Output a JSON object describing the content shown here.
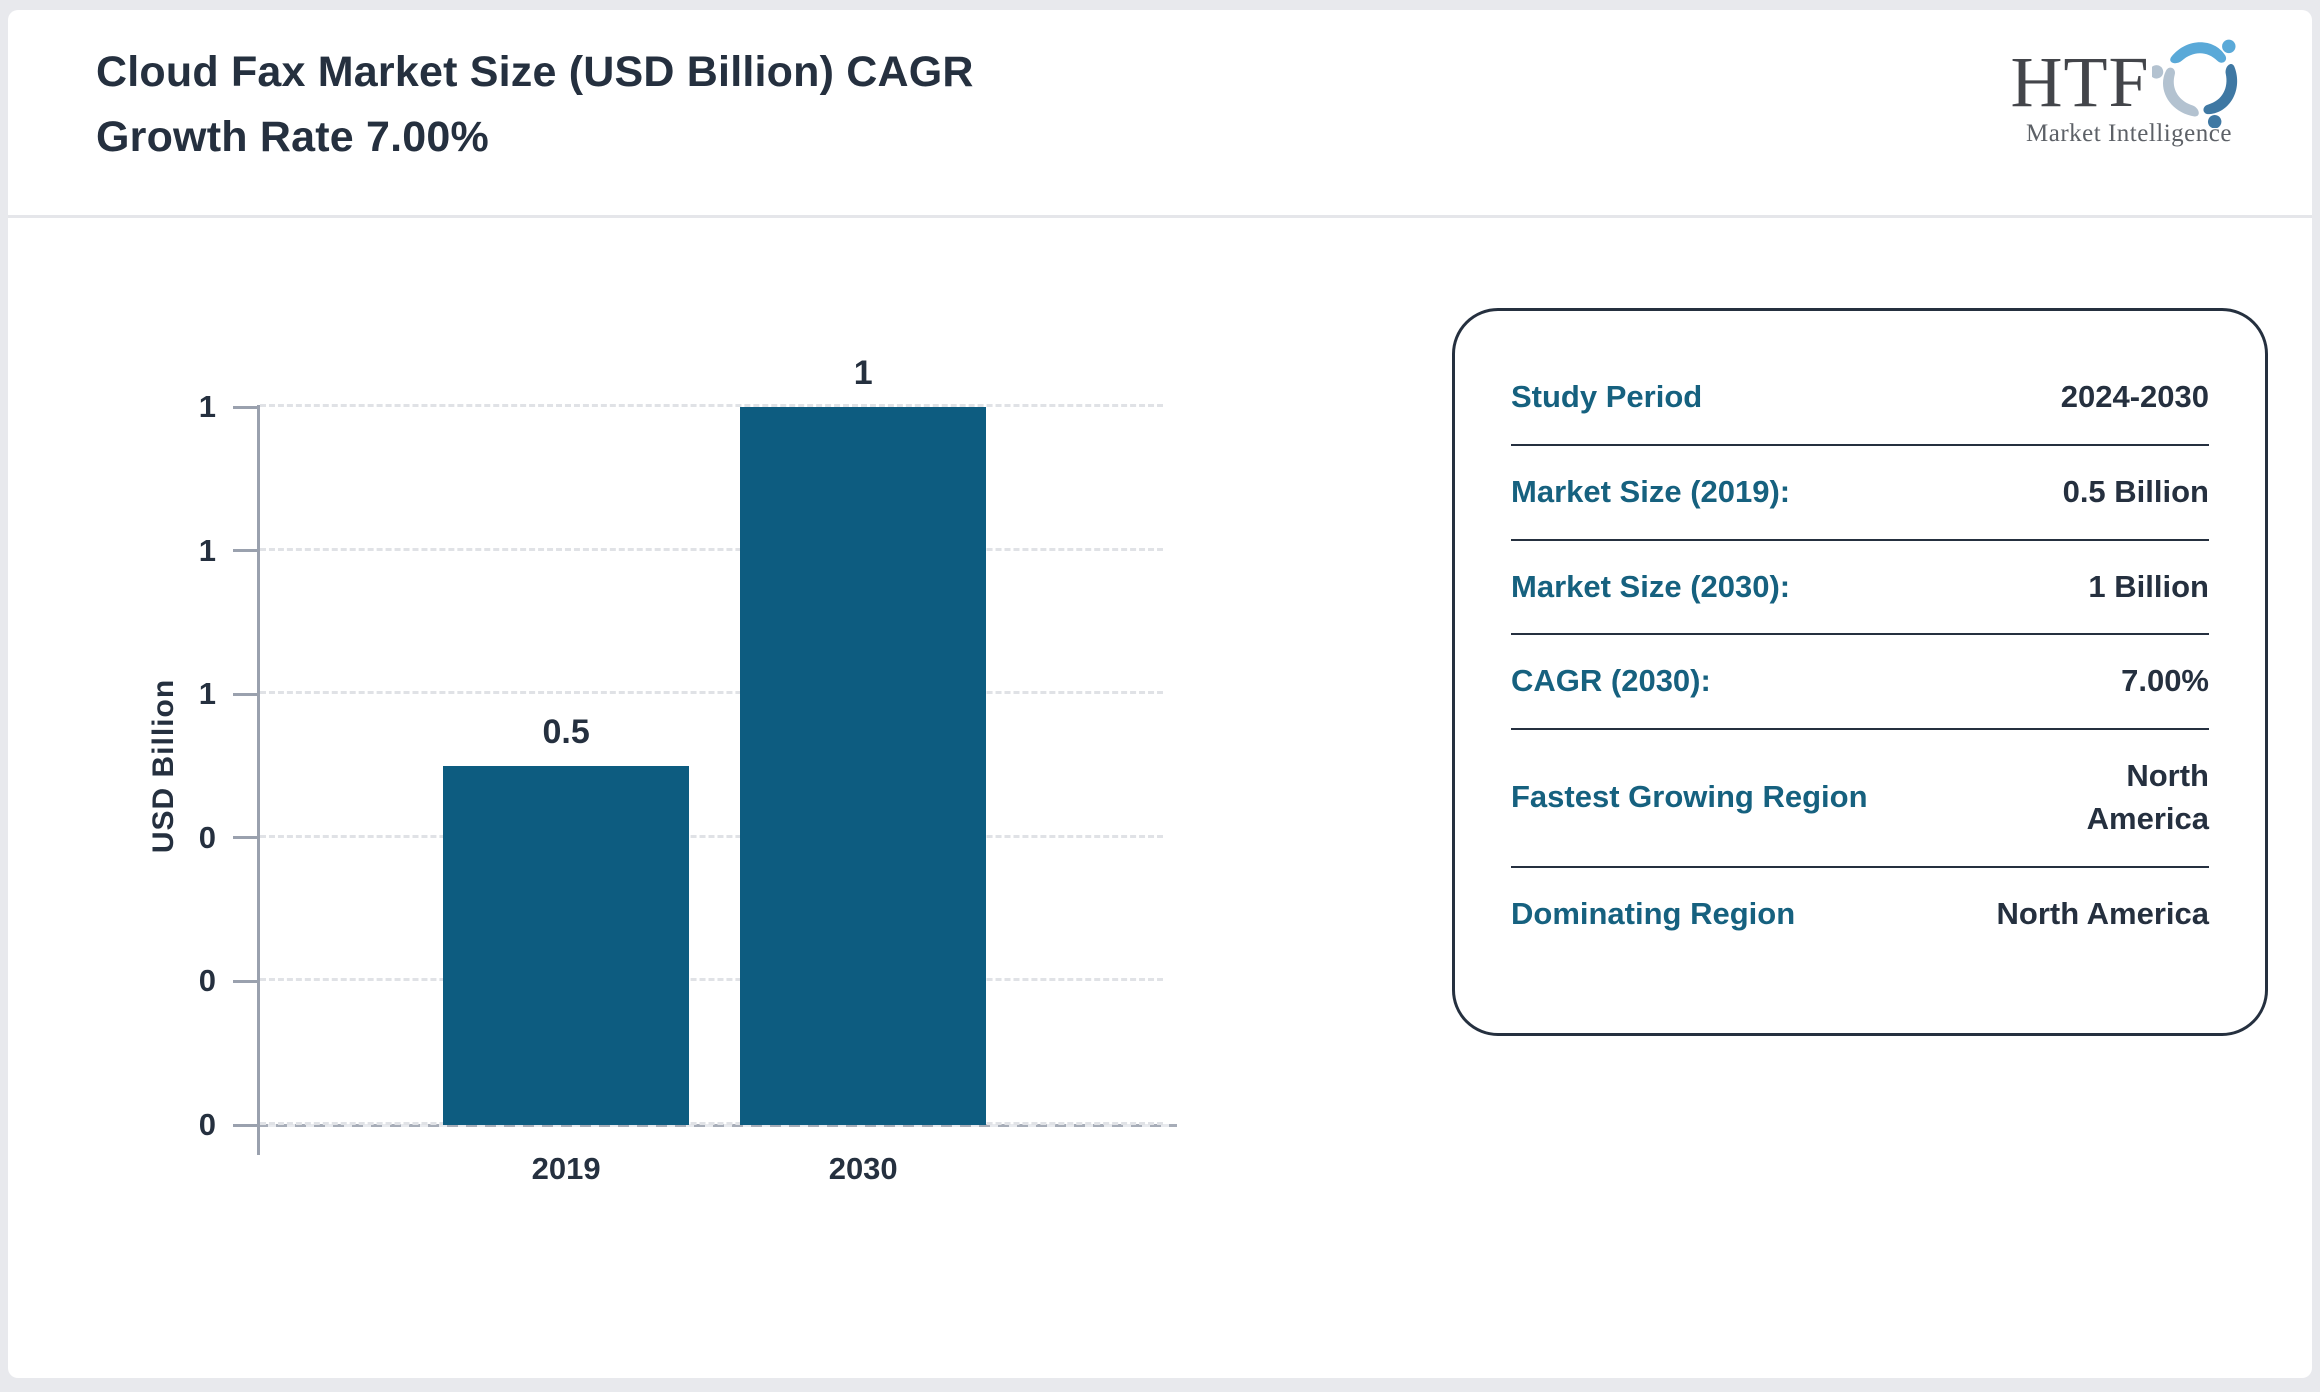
{
  "header": {
    "title": "Cloud Fax Market Size (USD Billion) CAGR\nGrowth Rate 7.00%",
    "logo": {
      "text": "HTF",
      "subtext": "Market Intelligence"
    }
  },
  "chart_data": {
    "type": "bar",
    "title": "Cloud Fax Market Size (USD Billion) CAGR Growth Rate 7.00%",
    "categories": [
      "2019",
      "2030"
    ],
    "values": [
      0.5,
      1
    ],
    "bar_labels": [
      "0.5",
      "1"
    ],
    "xlabel": "",
    "ylabel": "USD Billion",
    "ylim": [
      0,
      1
    ],
    "yticks": [
      0,
      0.2,
      0.4,
      0.6,
      0.8,
      1.0
    ],
    "ytick_labels": [
      "0",
      "0",
      "0",
      "1",
      "1",
      "1"
    ],
    "grid": true,
    "legend": false,
    "bar_color": "#0d5c80"
  },
  "info_panel": {
    "rows": [
      {
        "label": "Study Period",
        "value": "2024-2030"
      },
      {
        "label": "Market Size (2019):",
        "value": "0.5 Billion"
      },
      {
        "label": "Market Size (2030):",
        "value": "1 Billion"
      },
      {
        "label": "CAGR (2030):",
        "value": "7.00%"
      },
      {
        "label": "Fastest Growing Region",
        "value": "North\nAmerica"
      },
      {
        "label": "Dominating Region",
        "value": "North America"
      }
    ]
  },
  "colors": {
    "bar": "#0d5c80",
    "dark_text": "#25303f",
    "label_teal": "#16617f",
    "axis_gray": "#9aa1ae",
    "logo_light_blue": "#5aa9d8",
    "logo_steel_blue": "#3f78a3",
    "logo_pale_blue": "#b3c2d0"
  }
}
